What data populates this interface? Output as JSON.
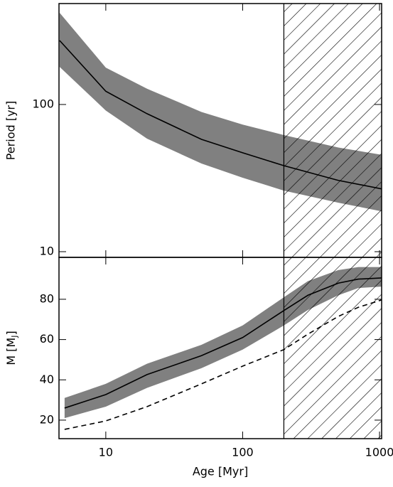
{
  "chart_data": [
    {
      "type": "band-line",
      "ylabel": "Period [yr]",
      "xlog": true,
      "ylog": true,
      "xlim": [
        4.55,
        1036
      ],
      "ylim": [
        9.15,
        485
      ],
      "xticks": [
        10,
        100,
        1000
      ],
      "yticks": [
        10,
        100
      ],
      "hatch_from": 200,
      "x": [
        4.6,
        10,
        20,
        50,
        100,
        200,
        500,
        1040
      ],
      "line": {
        "color": "#000000",
        "values": [
          272,
          123,
          86.6,
          58,
          47,
          38.4,
          30.5,
          26.7
        ]
      },
      "band": {
        "color": "#808080",
        "high": [
          420,
          178,
          128,
          89,
          73,
          62,
          51,
          45.5
        ],
        "low": [
          180,
          91,
          58.6,
          39.7,
          31.8,
          26,
          21.5,
          18.8
        ]
      }
    },
    {
      "type": "band-line",
      "xlabel": "Age [Myr]",
      "ylabel": {
        "text": "M [M",
        "subscript": "J",
        "suffix": "]"
      },
      "xlog": true,
      "ylog": false,
      "xlim": [
        4.55,
        1036
      ],
      "ylim": [
        10.8,
        100.8
      ],
      "xticks": [
        10,
        100,
        1000
      ],
      "yticks": [
        20,
        40,
        60,
        80
      ],
      "hatch_from": 200,
      "x": [
        5,
        10,
        20,
        50,
        100,
        200,
        300,
        500,
        700,
        1040
      ],
      "line": {
        "color": "#000000",
        "values": [
          26,
          32.7,
          42.6,
          52,
          61,
          74.4,
          82,
          88,
          90,
          90.6
        ]
      },
      "band": {
        "color": "#808080",
        "high": [
          31,
          38,
          48,
          57.4,
          67,
          81,
          89,
          94.5,
          96,
          96
        ],
        "low": [
          21,
          26.7,
          36,
          45.8,
          55,
          67,
          74.7,
          82,
          85.6,
          86.3
        ]
      },
      "dashed": {
        "color": "#000000",
        "values": [
          15.4,
          19.6,
          26.7,
          38,
          46.8,
          55,
          62.7,
          71.5,
          76,
          79.7
        ]
      }
    }
  ]
}
